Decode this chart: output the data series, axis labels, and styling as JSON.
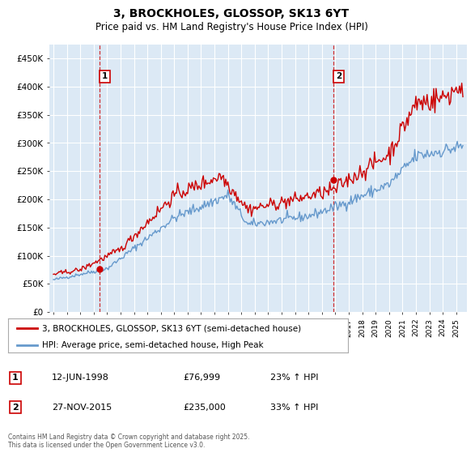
{
  "title": "3, BROCKHOLES, GLOSSOP, SK13 6YT",
  "subtitle": "Price paid vs. HM Land Registry's House Price Index (HPI)",
  "property_color": "#cc0000",
  "hpi_color": "#6699cc",
  "vline_color": "#cc0000",
  "plot_bg_color": "#dce9f5",
  "background_color": "#ffffff",
  "grid_color": "#ffffff",
  "ylim": [
    0,
    475000
  ],
  "yticks": [
    0,
    50000,
    100000,
    150000,
    200000,
    250000,
    300000,
    350000,
    400000,
    450000
  ],
  "ytick_labels": [
    "£0",
    "£50K",
    "£100K",
    "£150K",
    "£200K",
    "£250K",
    "£300K",
    "£350K",
    "£400K",
    "£450K"
  ],
  "purchase1_year": 1998,
  "purchase1_month": 6,
  "purchase1_day": 12,
  "purchase1_price": 76999,
  "purchase1_date": "12-JUN-1998",
  "purchase1_label": "23% ↑ HPI",
  "purchase2_year": 2015,
  "purchase2_month": 11,
  "purchase2_day": 27,
  "purchase2_price": 235000,
  "purchase2_date": "27-NOV-2015",
  "purchase2_label": "33% ↑ HPI",
  "legend_line1": "3, BROCKHOLES, GLOSSOP, SK13 6YT (semi-detached house)",
  "legend_line2": "HPI: Average price, semi-detached house, High Peak",
  "footnote": "Contains HM Land Registry data © Crown copyright and database right 2025.\nThis data is licensed under the Open Government Licence v3.0.",
  "box_num1": "1",
  "box_num2": "2"
}
